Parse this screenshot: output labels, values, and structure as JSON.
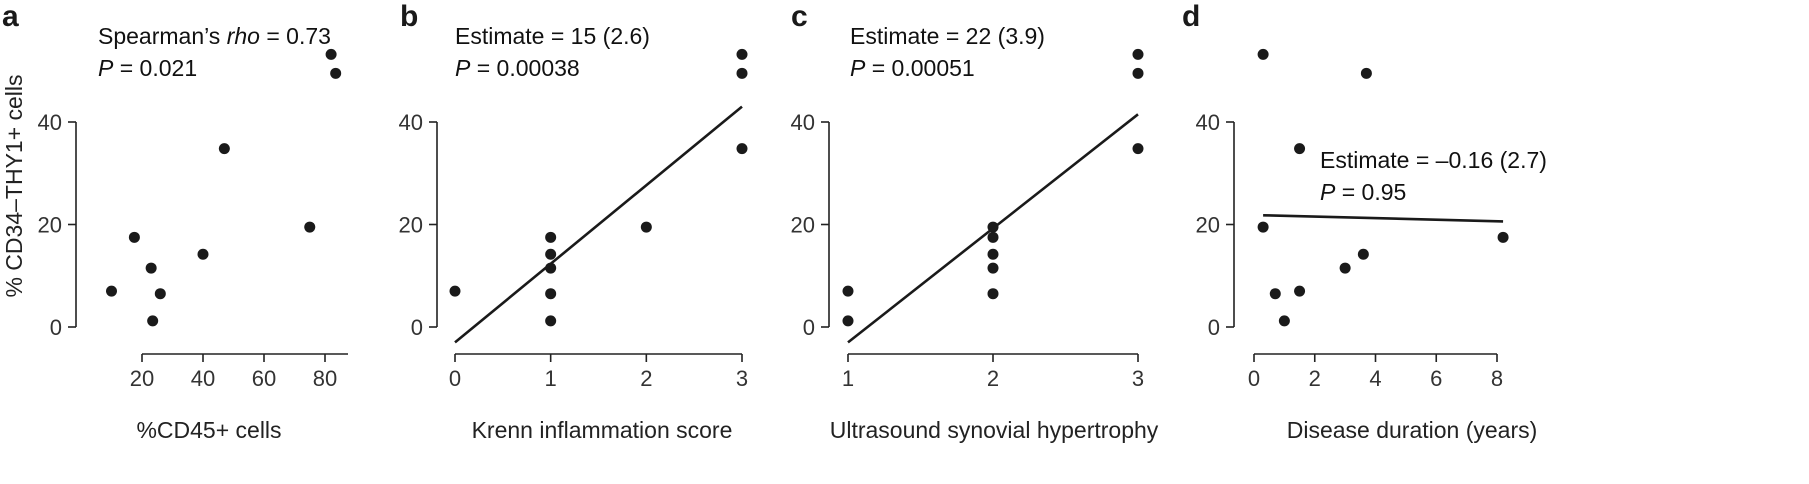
{
  "chart_data": [
    {
      "type": "scatter",
      "panel_label": "a",
      "xlabel": "%CD45+ cells",
      "ylabel": "% CD34–THY1+ cells",
      "xlim": [
        8,
        86
      ],
      "ylim": [
        -1,
        55
      ],
      "xticks": [
        20,
        40,
        60,
        80
      ],
      "yticks": [
        0,
        20,
        40
      ],
      "annotation": {
        "line1_prefix": "Spearman’s ",
        "line1_italic": "rho",
        "line1_suffix": " = 0.73",
        "line2_italic": "P",
        "line2_suffix": " = 0.021",
        "position": "top-left"
      },
      "points": [
        {
          "x": 10,
          "y": 7
        },
        {
          "x": 17.5,
          "y": 17.5
        },
        {
          "x": 23,
          "y": 11.5
        },
        {
          "x": 23.5,
          "y": 1.2
        },
        {
          "x": 26,
          "y": 6.5
        },
        {
          "x": 40,
          "y": 14.2
        },
        {
          "x": 47,
          "y": 34.8
        },
        {
          "x": 75,
          "y": 19.5
        },
        {
          "x": 82,
          "y": 53.2
        },
        {
          "x": 83.5,
          "y": 49.5
        }
      ]
    },
    {
      "type": "scatter",
      "panel_label": "b",
      "xlabel": "Krenn inflammation score",
      "ylabel": "",
      "xlim": [
        -0.05,
        3.05
      ],
      "ylim": [
        -1,
        55
      ],
      "xticks": [
        0,
        1,
        2,
        3
      ],
      "yticks": [
        0,
        20,
        40
      ],
      "annotation": {
        "line1_prefix": "Estimate = 15 (2.6)",
        "line1_italic": "",
        "line1_suffix": "",
        "line2_italic": "P",
        "line2_suffix": " = 0.00038",
        "position": "top-left"
      },
      "points": [
        {
          "x": 0,
          "y": 7
        },
        {
          "x": 1,
          "y": 17.5
        },
        {
          "x": 1,
          "y": 14.2
        },
        {
          "x": 1,
          "y": 11.5
        },
        {
          "x": 1,
          "y": 6.5
        },
        {
          "x": 1,
          "y": 1.2
        },
        {
          "x": 2,
          "y": 19.5
        },
        {
          "x": 3,
          "y": 53.2
        },
        {
          "x": 3,
          "y": 49.5
        },
        {
          "x": 3,
          "y": 34.8
        }
      ],
      "fit": {
        "x": [
          0,
          3
        ],
        "y": [
          -3,
          43
        ]
      }
    },
    {
      "type": "scatter",
      "panel_label": "c",
      "xlabel": "Ultrasound synovial hypertrophy",
      "ylabel": "",
      "xlim": [
        0.95,
        3.05
      ],
      "ylim": [
        -1,
        55
      ],
      "xticks": [
        1,
        2,
        3
      ],
      "yticks": [
        0,
        20,
        40
      ],
      "annotation": {
        "line1_prefix": "Estimate = 22 (3.9)",
        "line1_italic": "",
        "line1_suffix": "",
        "line2_italic": "P",
        "line2_suffix": " = 0.00051",
        "position": "top-left"
      },
      "points": [
        {
          "x": 1,
          "y": 7
        },
        {
          "x": 1,
          "y": 1.2
        },
        {
          "x": 2,
          "y": 19.5
        },
        {
          "x": 2,
          "y": 17.5
        },
        {
          "x": 2,
          "y": 14.2
        },
        {
          "x": 2,
          "y": 11.5
        },
        {
          "x": 2,
          "y": 6.5
        },
        {
          "x": 3,
          "y": 53.2
        },
        {
          "x": 3,
          "y": 49.5
        },
        {
          "x": 3,
          "y": 34.8
        }
      ],
      "fit": {
        "x": [
          1,
          3
        ],
        "y": [
          -3,
          41.5
        ]
      }
    },
    {
      "type": "scatter",
      "panel_label": "d",
      "xlabel": "Disease duration (years)",
      "ylabel": "",
      "xlim": [
        -0.1,
        8.5
      ],
      "ylim": [
        -1,
        55
      ],
      "xticks": [
        0,
        2,
        4,
        6,
        8
      ],
      "yticks": [
        0,
        20,
        40
      ],
      "annotation": {
        "line1_prefix": "Estimate = –0.16 (2.7)",
        "line1_italic": "",
        "line1_suffix": "",
        "line2_italic": "P",
        "line2_suffix": " = 0.95",
        "position": "middle-right"
      },
      "points": [
        {
          "x": 0.3,
          "y": 53.2
        },
        {
          "x": 0.3,
          "y": 19.5
        },
        {
          "x": 0.7,
          "y": 6.5
        },
        {
          "x": 1.0,
          "y": 1.2
        },
        {
          "x": 1.5,
          "y": 34.8
        },
        {
          "x": 1.5,
          "y": 7
        },
        {
          "x": 3.0,
          "y": 11.5
        },
        {
          "x": 3.6,
          "y": 14.2
        },
        {
          "x": 3.7,
          "y": 49.5
        },
        {
          "x": 8.2,
          "y": 17.5
        }
      ],
      "fit": {
        "x": [
          0.3,
          8.2
        ],
        "y": [
          21.8,
          20.6
        ]
      }
    }
  ]
}
